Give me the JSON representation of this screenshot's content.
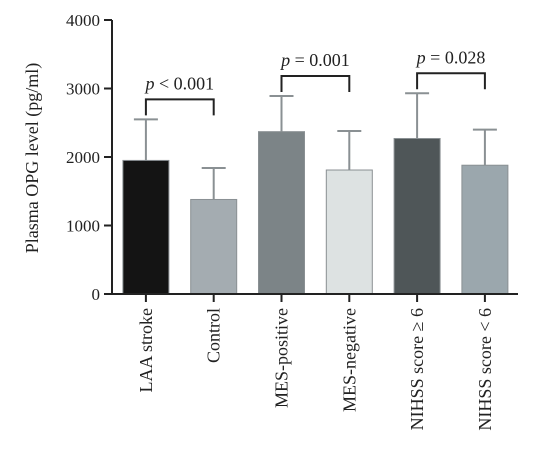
{
  "chart_data": {
    "type": "bar",
    "ylabel": "Plasma OPG level (pg/ml)",
    "xlabel": "",
    "ylim": [
      0,
      4000
    ],
    "yticks": [
      0,
      1000,
      2000,
      3000,
      4000
    ],
    "grid": false,
    "categories": [
      "LAA stroke",
      "Control",
      "MES-positive",
      "MES-negative",
      "NIHSS score ≥ 6",
      "NIHSS score < 6"
    ],
    "values": [
      1950,
      1380,
      2370,
      1810,
      2270,
      1880
    ],
    "error_upper": [
      2550,
      1840,
      2890,
      2380,
      2930,
      2400
    ],
    "colors": [
      "#141414",
      "#a4acb1",
      "#7c8487",
      "#dde2e2",
      "#4f5658",
      "#9ba7ad"
    ],
    "comparisons": [
      {
        "groups": [
          0,
          1
        ],
        "p_symbol": "p",
        "p_text": " < 0.001"
      },
      {
        "groups": [
          2,
          3
        ],
        "p_symbol": "p",
        "p_text": " = 0.001"
      },
      {
        "groups": [
          4,
          5
        ],
        "p_symbol": "p",
        "p_text": " = 0.028"
      }
    ]
  }
}
